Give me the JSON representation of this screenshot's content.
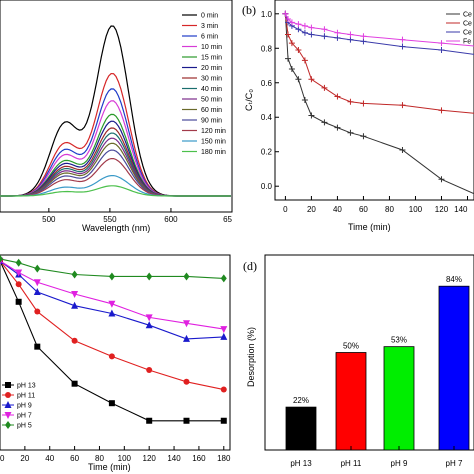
{
  "chart_data": [
    {
      "panel": "",
      "type": "line",
      "xlabel": "Wavelength (nm)",
      "ylabel": "",
      "xlim": [
        460,
        650
      ],
      "x_ticks": [
        "500",
        "550",
        "600",
        "65"
      ],
      "legend": [
        "0 min",
        "3 min",
        "6 min",
        "10 min",
        "15 min",
        "20 min",
        "30 min",
        "40 min",
        "50 min",
        "60 min",
        "90 min",
        "120 min",
        "150 min",
        "180 min"
      ],
      "colors": [
        "#000000",
        "#d62728",
        "#1f3cc8",
        "#d63bd6",
        "#2a9a2a",
        "#1a1a8c",
        "#9b2a2a",
        "#1a6e6e",
        "#7a2a8a",
        "#6a6a2a",
        "#4a4a9a",
        "#a23a4a",
        "#3a9ac8",
        "#4cc04c"
      ],
      "peak_heights": [
        1.0,
        0.72,
        0.63,
        0.56,
        0.48,
        0.44,
        0.4,
        0.37,
        0.34,
        0.31,
        0.27,
        0.22,
        0.12,
        0.06
      ]
    },
    {
      "panel": "(b)",
      "type": "line",
      "xlabel": "Time (min)",
      "ylabel": "Cₜ/C₀",
      "xlim": [
        -8,
        145
      ],
      "ylim": [
        -0.08,
        1.08
      ],
      "y_ticks": [
        "0.0",
        "0.2",
        "0.4",
        "0.6",
        "0.8",
        "1.0"
      ],
      "x_ticks": [
        "0",
        "20",
        "40",
        "60",
        "80",
        "100",
        "120",
        "140"
      ],
      "legend": [
        "Ce",
        "Ce",
        "Ce",
        "Fe"
      ],
      "series": [
        {
          "name": "Ce",
          "color": "#333333",
          "marker": "+",
          "x": [
            0,
            2,
            5,
            10,
            15,
            20,
            30,
            40,
            50,
            60,
            90,
            120,
            150
          ],
          "y": [
            1.0,
            0.74,
            0.68,
            0.62,
            0.5,
            0.41,
            0.37,
            0.34,
            0.31,
            0.29,
            0.21,
            0.04,
            -0.06
          ]
        },
        {
          "name": "Ce",
          "color": "#c02828",
          "marker": "+",
          "x": [
            0,
            2,
            5,
            10,
            15,
            20,
            30,
            40,
            50,
            60,
            90,
            120,
            150
          ],
          "y": [
            1.0,
            0.88,
            0.83,
            0.79,
            0.73,
            0.62,
            0.57,
            0.52,
            0.49,
            0.48,
            0.47,
            0.44,
            0.42
          ]
        },
        {
          "name": "Ce",
          "color": "#3a3aaa",
          "marker": "+",
          "x": [
            0,
            2,
            5,
            10,
            15,
            20,
            30,
            40,
            50,
            60,
            90,
            120,
            150
          ],
          "y": [
            1.0,
            0.95,
            0.93,
            0.91,
            0.89,
            0.88,
            0.87,
            0.86,
            0.85,
            0.84,
            0.81,
            0.79,
            0.76
          ]
        },
        {
          "name": "Fe",
          "color": "#e040e0",
          "marker": "+",
          "x": [
            0,
            2,
            5,
            10,
            15,
            20,
            30,
            40,
            50,
            60,
            90,
            120,
            150
          ],
          "y": [
            1.0,
            0.97,
            0.95,
            0.94,
            0.93,
            0.92,
            0.91,
            0.89,
            0.88,
            0.87,
            0.85,
            0.83,
            0.81
          ]
        }
      ]
    },
    {
      "panel": "",
      "type": "line",
      "xlabel": "Time (min)",
      "ylabel": "",
      "xlim": [
        0,
        185
      ],
      "ylim": [
        0,
        1.0
      ],
      "x_ticks": [
        "0",
        "20",
        "40",
        "60",
        "80",
        "100",
        "120",
        "140",
        "160",
        "180"
      ],
      "legend": [
        "pH 13",
        "pH 11",
        "pH 9",
        "pH 7",
        "pH 5"
      ],
      "series": [
        {
          "name": "pH 13",
          "color": "#000000",
          "marker": "square",
          "x": [
            0,
            15,
            30,
            60,
            90,
            120,
            150,
            180
          ],
          "y": [
            0.97,
            0.76,
            0.53,
            0.34,
            0.24,
            0.15,
            0.15,
            0.15
          ]
        },
        {
          "name": "pH 11",
          "color": "#e02020",
          "marker": "circle",
          "x": [
            0,
            15,
            30,
            60,
            90,
            120,
            150,
            180
          ],
          "y": [
            0.97,
            0.85,
            0.71,
            0.56,
            0.48,
            0.41,
            0.35,
            0.31
          ]
        },
        {
          "name": "pH 9",
          "color": "#1a1acc",
          "marker": "triangle",
          "x": [
            0,
            15,
            30,
            60,
            90,
            120,
            150,
            180
          ],
          "y": [
            0.97,
            0.9,
            0.81,
            0.74,
            0.7,
            0.64,
            0.57,
            0.58
          ]
        },
        {
          "name": "pH 7",
          "color": "#e020e0",
          "marker": "triangle-down",
          "x": [
            0,
            15,
            30,
            60,
            90,
            120,
            150,
            180
          ],
          "y": [
            0.97,
            0.91,
            0.86,
            0.8,
            0.75,
            0.68,
            0.65,
            0.62
          ]
        },
        {
          "name": "pH 5",
          "color": "#208a20",
          "marker": "diamond",
          "x": [
            0,
            15,
            30,
            60,
            90,
            120,
            150,
            180
          ],
          "y": [
            0.98,
            0.96,
            0.93,
            0.9,
            0.89,
            0.89,
            0.89,
            0.88
          ]
        }
      ]
    },
    {
      "panel": "(d)",
      "type": "bar",
      "ylabel": "Desorption (%)",
      "ylim": [
        0,
        100
      ],
      "categories": [
        "pH 13",
        "pH 11",
        "pH 9",
        "pH 7"
      ],
      "values": [
        22,
        50,
        53,
        84
      ],
      "labels": [
        "22%",
        "50%",
        "53%",
        "84%"
      ],
      "colors": [
        "#000000",
        "#ff0000",
        "#00ee00",
        "#0000ff"
      ]
    }
  ]
}
